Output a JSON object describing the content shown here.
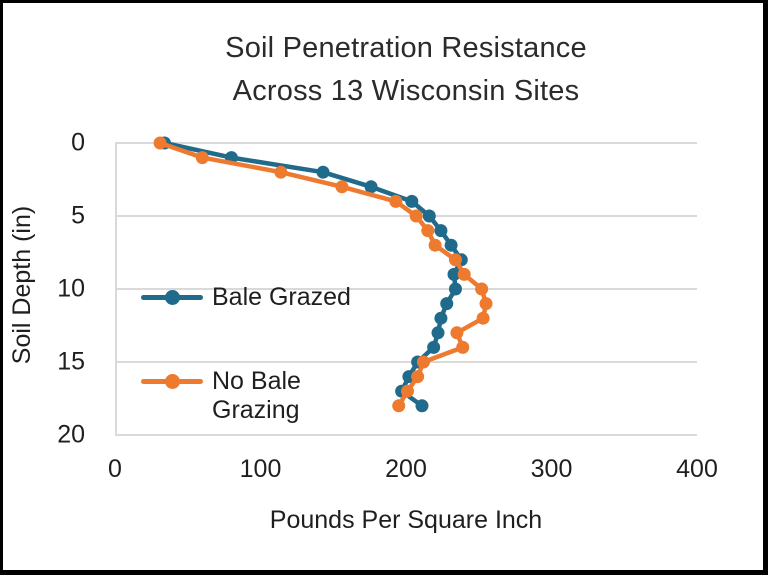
{
  "frame": {
    "border_color": "#000000",
    "background": "#ffffff"
  },
  "chart_data": {
    "type": "line",
    "title": "Soil Penetration Resistance Across 13 Wisconsin Sites",
    "title_lines": [
      "Soil Penetration Resistance",
      "Across 13 Wisconsin Sites"
    ],
    "xlabel": "Pounds Per Square Inch",
    "ylabel": "Soil Depth (in)",
    "orientation": "depth-profile: y axis is soil depth increasing downward, x axis is resistance",
    "xlim": [
      0,
      400
    ],
    "ylim": [
      0,
      20
    ],
    "x_ticks": [
      0,
      100,
      200,
      300,
      400
    ],
    "y_ticks": [
      0,
      5,
      10,
      15,
      20
    ],
    "grid": "horizontal gridlines only, light gray",
    "gridline_color": "#d9d9d9",
    "axis_line_color": "#d9d9d9",
    "depths_in": [
      0,
      1,
      2,
      3,
      4,
      5,
      6,
      7,
      8,
      9,
      10,
      11,
      12,
      13,
      14,
      15,
      16,
      17,
      18
    ],
    "series": [
      {
        "name": "Bale Grazed",
        "color": "#206A8C",
        "values_psi": [
          34,
          80,
          143,
          176,
          204,
          216,
          224,
          231,
          238,
          233,
          234,
          228,
          224,
          222,
          219,
          208,
          202,
          197,
          211
        ]
      },
      {
        "name": "No Bale Grazing",
        "color": "#ED7A2F",
        "values_psi": [
          31,
          60,
          114,
          156,
          193,
          207,
          215,
          220,
          234,
          240,
          252,
          255,
          253,
          235,
          239,
          212,
          208,
          201,
          195
        ]
      }
    ],
    "legend": {
      "position": "inside plot, left side",
      "item1_label": "Bale Grazed",
      "item2_lines": [
        "No Bale",
        "Grazing"
      ]
    }
  }
}
